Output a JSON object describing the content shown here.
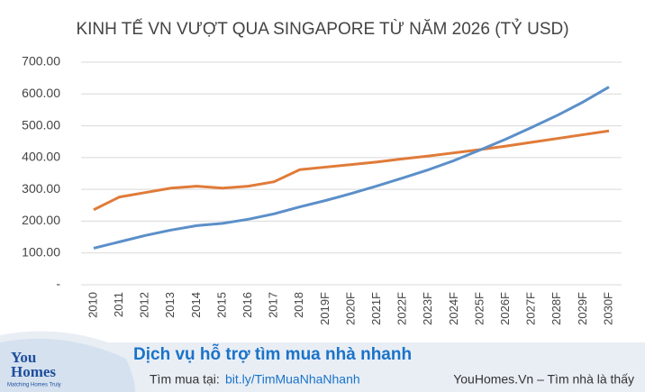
{
  "chart_data": {
    "type": "line",
    "title": "KINH TẾ VN VƯỢT QUA SINGAPORE TỪ NĂM 2026 (TỶ USD)",
    "categories": [
      "2010",
      "2011",
      "2012",
      "2013",
      "2014",
      "2015",
      "2016",
      "2017",
      "2018",
      "2019F",
      "2020F",
      "2021F",
      "2022F",
      "2023F",
      "2024F",
      "2025F",
      "2026F",
      "2027F",
      "2028F",
      "2029F",
      "2030F"
    ],
    "series": [
      {
        "color": "#e07b39",
        "values": [
          236,
          276,
          290,
          304,
          310,
          304,
          310,
          324,
          362,
          370,
          378,
          386,
          396,
          405,
          415,
          425,
          436,
          448,
          460,
          472,
          484
        ]
      },
      {
        "color": "#5b8fc9",
        "values": [
          115,
          135,
          155,
          172,
          186,
          193,
          206,
          223,
          245,
          265,
          287,
          311,
          336,
          362,
          391,
          424,
          458,
          495,
          533,
          575,
          622
        ]
      }
    ],
    "ylim": [
      0,
      700
    ],
    "yticks": [
      {
        "value": 0,
        "label": "-"
      },
      {
        "value": 100,
        "label": "100.00"
      },
      {
        "value": 200,
        "label": "200.00"
      },
      {
        "value": 300,
        "label": "300.00"
      },
      {
        "value": 400,
        "label": "400.00"
      },
      {
        "value": 500,
        "label": "500.00"
      },
      {
        "value": 600,
        "label": "600.00"
      },
      {
        "value": 700,
        "label": "700.00"
      }
    ],
    "grid": true
  },
  "banner": {
    "logo_line1": "You",
    "logo_line2": "Homes",
    "logo_tagline": "Matching Homes Truly",
    "headline": "Dịch vụ hỗ trợ tìm mua nhà nhanh",
    "link_label": "Tìm mua tại:",
    "link": "bit.ly/TimMuaNhaNhanh",
    "site": "YouHomes.Vn – Tìm nhà là thấy"
  }
}
